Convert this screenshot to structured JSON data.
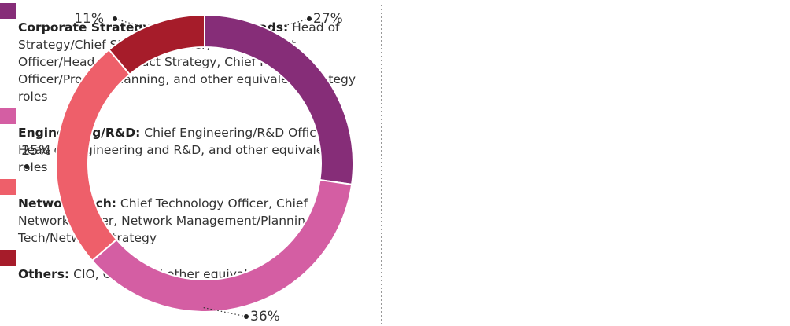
{
  "chart_data": {
    "type": "pie",
    "donut": true,
    "series": [
      {
        "name": "Corporate Strategy and Product Leads:",
        "description": "Head of Strategy/Chief Strategy Officer, Chief Product Officer/Head of Product Strategy, Chief Planning Officer/Product Planning, and other equivalent strategy roles",
        "color": "#862d78",
        "values": [
          27
        ],
        "value_labels": [
          "27%"
        ]
      },
      {
        "name": "Engineering/R&D:",
        "description": "Chief Engineering/R&D Officer, Head of Engineering and R&D, and other equivalent roles",
        "color": "#d45ea3",
        "values": [
          36
        ],
        "value_labels": [
          "36%"
        ]
      },
      {
        "name": "Network/Tech:",
        "description": "Chief Technology Officer, Chief Network Officer, Network Management/Planning, Tech/Network Strategy",
        "color": "#ee5f6a",
        "values": [
          25
        ],
        "value_labels": [
          "25%"
        ]
      },
      {
        "name": "Others:",
        "description": "CIO, CISO, and other equivalent roles",
        "color": "#a61c2a",
        "values": [
          11
        ],
        "value_labels": [
          "11%"
        ]
      }
    ]
  }
}
